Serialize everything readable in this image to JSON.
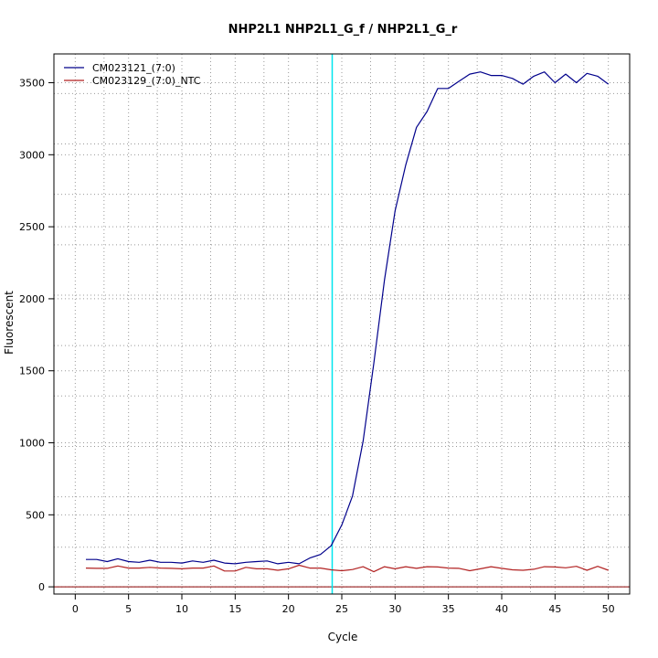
{
  "chart_data": {
    "type": "line",
    "title": "NHP2L1  NHP2L1_G_f / NHP2L1_G_r",
    "xlabel": "Cycle",
    "ylabel": "Fluorescent",
    "xlim": [
      -2,
      52
    ],
    "ylim": [
      -50,
      3700
    ],
    "xticks": [
      0,
      5,
      10,
      15,
      20,
      25,
      30,
      35,
      40,
      45,
      50
    ],
    "yticks": [
      0,
      500,
      1000,
      1500,
      2000,
      2500,
      3000,
      3500
    ],
    "x_minor_grid": [
      2.7,
      7.7,
      12.7,
      17.7,
      22.7,
      27.7,
      32.7,
      37.7,
      42.7,
      47.7
    ],
    "y_minor_grid": [
      275,
      625,
      975,
      1325,
      1675,
      2025,
      2375,
      2725,
      3075,
      3425
    ],
    "grid": true,
    "legend_position": "top-left",
    "threshold_cycle": 24.1,
    "threshold_color": "#00e5ee",
    "baseline": 0,
    "baseline_color": "#8b0000",
    "x": [
      1,
      2,
      3,
      4,
      5,
      6,
      7,
      8,
      9,
      10,
      11,
      12,
      13,
      14,
      15,
      16,
      17,
      18,
      19,
      20,
      21,
      22,
      23,
      24,
      25,
      26,
      27,
      28,
      29,
      30,
      31,
      32,
      33,
      34,
      35,
      36,
      37,
      38,
      39,
      40,
      41,
      42,
      43,
      44,
      45,
      46,
      47,
      48,
      49,
      50
    ],
    "series": [
      {
        "name": "CM023121_(7:0)",
        "color": "#00008b",
        "values": [
          190,
          190,
          175,
          195,
          175,
          170,
          185,
          170,
          170,
          165,
          180,
          170,
          185,
          165,
          160,
          170,
          175,
          180,
          160,
          170,
          160,
          200,
          225,
          285,
          430,
          630,
          1010,
          1550,
          2130,
          2610,
          2930,
          3190,
          3300,
          3460,
          3460,
          3510,
          3560,
          3575,
          3550,
          3550,
          3530,
          3490,
          3545,
          3575,
          3500,
          3560,
          3500,
          3565,
          3545,
          3490
        ]
      },
      {
        "name": "CM023129_(7:0)_NTC",
        "color": "#b22222",
        "values": [
          130,
          128,
          128,
          145,
          130,
          130,
          135,
          130,
          128,
          125,
          130,
          130,
          145,
          110,
          110,
          135,
          125,
          125,
          115,
          125,
          150,
          130,
          130,
          118,
          112,
          120,
          140,
          105,
          140,
          125,
          140,
          128,
          140,
          138,
          130,
          128,
          112,
          125,
          140,
          128,
          118,
          115,
          122,
          140,
          138,
          132,
          142,
          115,
          142,
          115
        ]
      }
    ]
  }
}
